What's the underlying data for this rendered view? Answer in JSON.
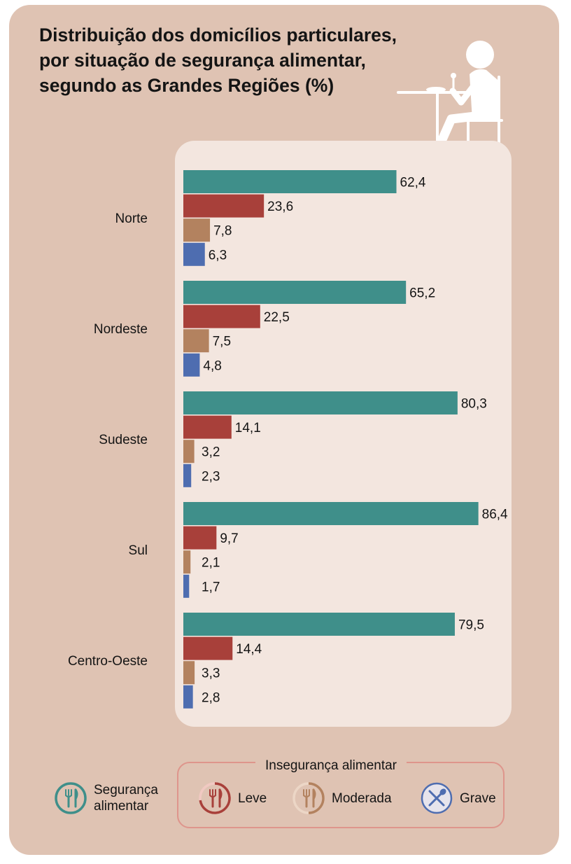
{
  "title_lines": [
    "Distribuição dos domicílios particulares,",
    "por situação de segurança alimentar,",
    "segundo as Grandes Regiões (%)"
  ],
  "chart_data": {
    "type": "bar",
    "orientation": "horizontal",
    "title": "Distribuição dos domicílios particulares, por situação de segurança alimentar, segundo as Grandes Regiões (%)",
    "categories": [
      "Norte",
      "Nordeste",
      "Sudeste",
      "Sul",
      "Centro-Oeste"
    ],
    "series": [
      {
        "name": "Segurança alimentar",
        "color": "#3f8f8a",
        "values": [
          62.4,
          65.2,
          80.3,
          86.4,
          79.5
        ],
        "labels": [
          "62,4",
          "65,2",
          "80,3",
          "86,4",
          "79,5"
        ]
      },
      {
        "name": "Leve",
        "color": "#a8403a",
        "values": [
          23.6,
          22.5,
          14.1,
          9.7,
          14.4
        ],
        "labels": [
          "23,6",
          "22,5",
          "14,1",
          "9,7",
          "14,4"
        ]
      },
      {
        "name": "Moderada",
        "color": "#b3825f",
        "values": [
          7.8,
          7.5,
          3.2,
          2.1,
          3.3
        ],
        "labels": [
          "7,8",
          "7,5",
          "3,2",
          "2,1",
          "3,3"
        ]
      },
      {
        "name": "Grave",
        "color": "#4e6db0",
        "values": [
          6.3,
          4.8,
          2.3,
          1.7,
          2.8
        ],
        "labels": [
          "6,3",
          "4,8",
          "2,3",
          "1,7",
          "2,8"
        ]
      }
    ],
    "xlim": [
      0,
      100
    ],
    "xlabel": "",
    "ylabel": "",
    "grid": false
  },
  "legend": {
    "group_caption": "Insegurança alimentar",
    "items": [
      {
        "label": "Segurança alimentar",
        "icon": "fork-knife-icon",
        "color": "#3f8f8a"
      },
      {
        "label": "Leve",
        "icon": "fork-knife-icon",
        "color": "#a8403a"
      },
      {
        "label": "Moderada",
        "icon": "fork-knife-icon",
        "color": "#b3825f"
      },
      {
        "label": "Grave",
        "icon": "crossed-cutlery-icon",
        "color": "#4e6db0"
      }
    ]
  }
}
